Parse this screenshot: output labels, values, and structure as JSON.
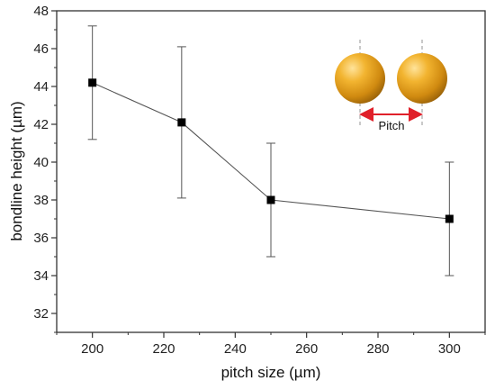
{
  "chart_data": {
    "type": "line",
    "xlabel": "pitch size (µm)",
    "ylabel": "bondline height (µm)",
    "xlim": [
      190,
      310
    ],
    "ylim": [
      31,
      48
    ],
    "x_ticks": [
      200,
      220,
      240,
      260,
      280,
      300
    ],
    "y_ticks": [
      32,
      34,
      36,
      38,
      40,
      42,
      44,
      46,
      48
    ],
    "grid": false,
    "marker": "square",
    "series": [
      {
        "x": [
          200,
          225,
          250,
          300
        ],
        "y": [
          44.2,
          42.1,
          38.0,
          37.0
        ],
        "error_low": [
          41.2,
          38.1,
          35.0,
          34.0
        ],
        "error_high": [
          47.2,
          46.1,
          41.0,
          40.0
        ]
      }
    ],
    "inset": {
      "description_label": "Pitch",
      "sphere_color": "#E8A11A",
      "arrow_color": "#E0202A"
    },
    "colors": {
      "line": "#555555",
      "marker": "#000000",
      "axis": "#333333"
    }
  }
}
